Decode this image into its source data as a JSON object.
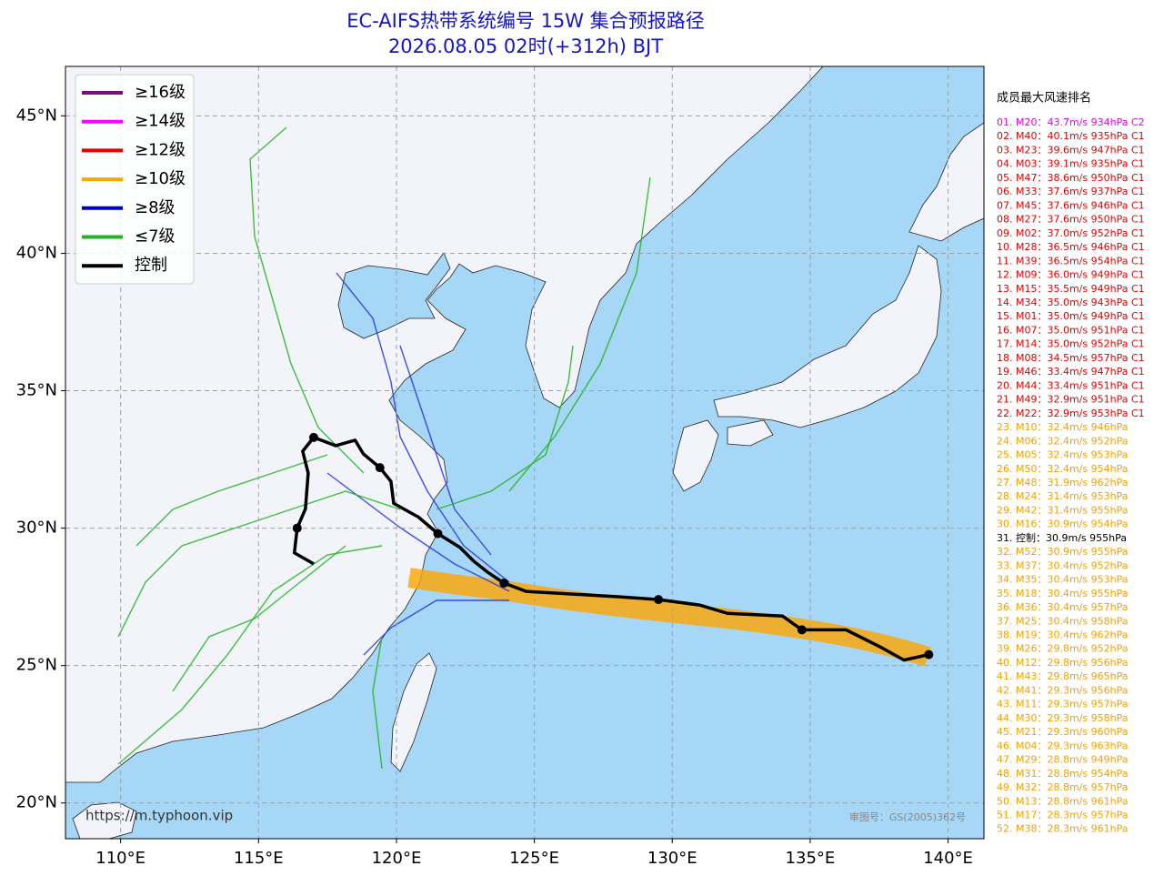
{
  "header": {
    "title": "EC-AIFS热带系统编号 15W 集合预报路径",
    "subtitle": "2026.08.05 02时(+312h) BJT"
  },
  "map": {
    "xlim": [
      108,
      141.3
    ],
    "ylim": [
      18.7,
      46.8
    ],
    "grid": true,
    "xticks": [
      {
        "value": 110,
        "label": "110°E"
      },
      {
        "value": 115,
        "label": "115°E"
      },
      {
        "value": 120,
        "label": "120°E"
      },
      {
        "value": 125,
        "label": "125°E"
      },
      {
        "value": 130,
        "label": "130°E"
      },
      {
        "value": 135,
        "label": "135°E"
      },
      {
        "value": 140,
        "label": "140°E"
      }
    ],
    "yticks": [
      {
        "value": 20,
        "label": "20°N"
      },
      {
        "value": 25,
        "label": "25°N"
      },
      {
        "value": 30,
        "label": "30°N"
      },
      {
        "value": 35,
        "label": "35°N"
      },
      {
        "value": 40,
        "label": "40°N"
      },
      {
        "value": 45,
        "label": "45°N"
      }
    ],
    "control_track": {
      "color": "#000000",
      "lon": [
        139.3,
        138.4,
        137.5,
        136.3,
        134.7,
        134.0,
        132.0,
        131.0,
        129.5,
        128.1,
        126.4,
        124.7,
        123.9,
        123.3,
        122.8,
        122.3,
        121.5,
        120.8,
        119.9,
        119.8,
        119.4,
        118.8,
        118.5,
        117.8,
        117.0,
        116.6,
        116.8,
        116.7,
        116.4,
        116.3,
        117.0
      ],
      "lat": [
        25.4,
        25.2,
        25.7,
        26.3,
        26.3,
        26.8,
        26.9,
        27.2,
        27.4,
        27.5,
        27.6,
        27.7,
        28.0,
        28.4,
        28.8,
        29.3,
        29.8,
        30.4,
        30.9,
        31.7,
        32.2,
        32.7,
        33.2,
        33.0,
        33.3,
        32.8,
        32.0,
        30.7,
        30.0,
        29.1,
        28.7
      ]
    },
    "watermark": "https://m.typhoon.vip",
    "approval": "审图号：GS(2005)362号"
  },
  "legend": [
    {
      "label": "≥16级",
      "color": "#7a0f7a"
    },
    {
      "label": "≥14级",
      "color": "#ff00ff"
    },
    {
      "label": "≥12级",
      "color": "#e60000"
    },
    {
      "label": "≥10级",
      "color": "#ffa500"
    },
    {
      "label": "≥8级",
      "color": "#0000cc"
    },
    {
      "label": "≤7级",
      "color": "#22b422"
    },
    {
      "label": "控制",
      "color": "#000000"
    }
  ],
  "ranking": {
    "title": "成员最大风速排名",
    "entries": [
      {
        "text": "01. M20：43.7m/s 934hPa C2",
        "color": "#e600e6"
      },
      {
        "text": "02. M40：40.1m/s 935hPa C1",
        "color": "#e00000"
      },
      {
        "text": "03. M23：39.6m/s 947hPa C1",
        "color": "#e00000"
      },
      {
        "text": "04. M03：39.1m/s 935hPa C1",
        "color": "#e00000"
      },
      {
        "text": "05. M47：38.6m/s 950hPa C1",
        "color": "#e00000"
      },
      {
        "text": "06. M33：37.6m/s 937hPa C1",
        "color": "#e00000"
      },
      {
        "text": "07. M45：37.6m/s 946hPa C1",
        "color": "#e00000"
      },
      {
        "text": "08. M27：37.6m/s 950hPa C1",
        "color": "#e00000"
      },
      {
        "text": "09. M02：37.0m/s 952hPa C1",
        "color": "#e00000"
      },
      {
        "text": "10. M28：36.5m/s 946hPa C1",
        "color": "#e00000"
      },
      {
        "text": "11. M39：36.5m/s 954hPa C1",
        "color": "#e00000"
      },
      {
        "text": "12. M09：36.0m/s 949hPa C1",
        "color": "#e00000"
      },
      {
        "text": "13. M15：35.5m/s 949hPa C1",
        "color": "#e00000"
      },
      {
        "text": "14. M34：35.0m/s 943hPa C1",
        "color": "#e00000"
      },
      {
        "text": "15. M01：35.0m/s 949hPa C1",
        "color": "#e00000"
      },
      {
        "text": "16. M07：35.0m/s 951hPa C1",
        "color": "#e00000"
      },
      {
        "text": "17. M14：35.0m/s 952hPa C1",
        "color": "#e00000"
      },
      {
        "text": "18. M08：34.5m/s 957hPa C1",
        "color": "#e00000"
      },
      {
        "text": "19. M46：33.4m/s 947hPa C1",
        "color": "#e00000"
      },
      {
        "text": "20. M44：33.4m/s 951hPa C1",
        "color": "#e00000"
      },
      {
        "text": "21. M49：32.9m/s 951hPa C1",
        "color": "#e00000"
      },
      {
        "text": "22. M22：32.9m/s 953hPa C1",
        "color": "#e00000"
      },
      {
        "text": "23. M10：32.4m/s 946hPa",
        "color": "#f0a000"
      },
      {
        "text": "24. M06：32.4m/s 952hPa",
        "color": "#f0a000"
      },
      {
        "text": "25. M05：32.4m/s 953hPa",
        "color": "#f0a000"
      },
      {
        "text": "26. M50：32.4m/s 954hPa",
        "color": "#f0a000"
      },
      {
        "text": "27. M48：31.9m/s 962hPa",
        "color": "#f0a000"
      },
      {
        "text": "28. M24：31.4m/s 953hPa",
        "color": "#f0a000"
      },
      {
        "text": "29. M42：31.4m/s 955hPa",
        "color": "#f0a000"
      },
      {
        "text": "30. M16：30.9m/s 954hPa",
        "color": "#f0a000"
      },
      {
        "text": "31. 控制：30.9m/s 955hPa",
        "color": "#000000"
      },
      {
        "text": "32. M52：30.9m/s 955hPa",
        "color": "#f0a000"
      },
      {
        "text": "33. M37：30.4m/s 952hPa",
        "color": "#f0a000"
      },
      {
        "text": "34. M35：30.4m/s 953hPa",
        "color": "#f0a000"
      },
      {
        "text": "35. M18：30.4m/s 955hPa",
        "color": "#f0a000"
      },
      {
        "text": "36. M36：30.4m/s 957hPa",
        "color": "#f0a000"
      },
      {
        "text": "37. M25：30.4m/s 958hPa",
        "color": "#f0a000"
      },
      {
        "text": "38. M19：30.4m/s 962hPa",
        "color": "#f0a000"
      },
      {
        "text": "39. M26：29.8m/s 952hPa",
        "color": "#f0a000"
      },
      {
        "text": "40. M12：29.8m/s 956hPa",
        "color": "#f0a000"
      },
      {
        "text": "41. M43：29.8m/s 965hPa",
        "color": "#f0a000"
      },
      {
        "text": "42. M41：29.3m/s 956hPa",
        "color": "#f0a000"
      },
      {
        "text": "43. M11：29.3m/s 957hPa",
        "color": "#f0a000"
      },
      {
        "text": "44. M30：29.3m/s 958hPa",
        "color": "#f0a000"
      },
      {
        "text": "45. M21：29.3m/s 960hPa",
        "color": "#f0a000"
      },
      {
        "text": "46. M04：29.3m/s 963hPa",
        "color": "#f0a000"
      },
      {
        "text": "47. M29：28.8m/s 949hPa",
        "color": "#f0a000"
      },
      {
        "text": "48. M31：28.8m/s 954hPa",
        "color": "#f0a000"
      },
      {
        "text": "49. M32：28.8m/s 957hPa",
        "color": "#f0a000"
      },
      {
        "text": "50. M13：28.8m/s 961hPa",
        "color": "#f0a000"
      },
      {
        "text": "51. M17：28.3m/s 957hPa",
        "color": "#f0a000"
      },
      {
        "text": "52. M38：28.3m/s 961hPa",
        "color": "#f0a000"
      }
    ]
  }
}
